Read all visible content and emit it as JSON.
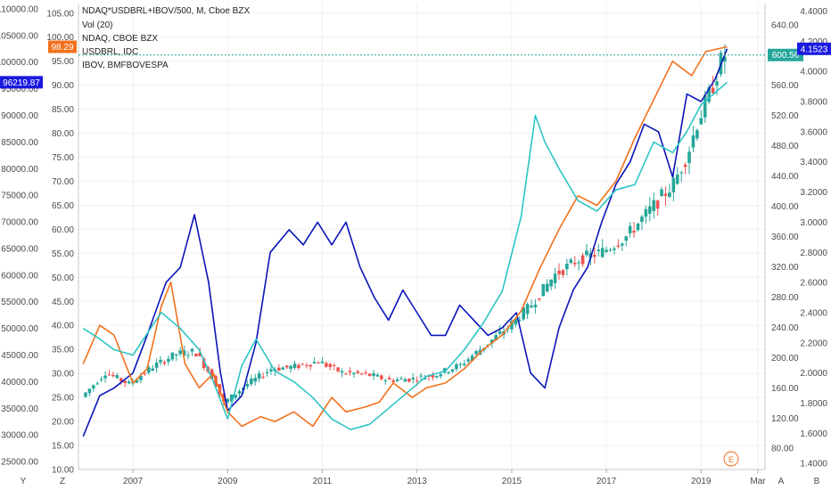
{
  "chart_data": {
    "type": "line",
    "legend": {
      "placement": "top-left",
      "entries": [
        "NDAQ*USDBRL+IBOV/500, M, Cboe BZX",
        "Vol (20)",
        "NDAQ, CBOE BZX",
        "USDBRL, IDC",
        "IBOV, BMFBOVESPA"
      ]
    },
    "x_ticks": [
      "2007",
      "2009",
      "2011",
      "2013",
      "2015",
      "2017",
      "2019",
      "Mar"
    ],
    "x_range": [
      2005.85,
      2020.35
    ],
    "axes": {
      "far_left": {
        "ticks": [
          "25000.00",
          "30000.00",
          "35000.00",
          "40000.00",
          "45000.00",
          "50000.00",
          "55000.00",
          "60000.00",
          "65000.00",
          "70000.00",
          "75000.00",
          "80000.00",
          "85000.00",
          "90000.00",
          "95000.00",
          "100000.00",
          "105000.00",
          "110000.00"
        ],
        "range": [
          23500,
          111000
        ]
      },
      "left": {
        "ticks": [
          "10.00",
          "15.00",
          "20.00",
          "25.00",
          "30.00",
          "35.00",
          "40.00",
          "45.00",
          "50.00",
          "55.00",
          "60.00",
          "65.00",
          "70.00",
          "75.00",
          "80.00",
          "85.00",
          "90.00",
          "95.00",
          "100.00",
          "105.00"
        ],
        "range": [
          10,
          107
        ]
      },
      "right": {
        "ticks": [
          "80.00",
          "120.00",
          "160.00",
          "200.00",
          "240.00",
          "280.00",
          "320.00",
          "360.00",
          "400.00",
          "440.00",
          "480.00",
          "520.00",
          "560.00",
          "600.00",
          "640.00"
        ],
        "range": [
          52,
          668
        ]
      },
      "far_right": {
        "ticks": [
          "1.4000",
          "1.6000",
          "1.8000",
          "2.0000",
          "2.2000",
          "2.4000",
          "2.6000",
          "2.8000",
          "3.0000",
          "3.2000",
          "3.4000",
          "3.6000",
          "3.8000",
          "4.0000",
          "4.2000",
          "4.4000"
        ],
        "range": [
          1.36,
          4.45
        ]
      }
    },
    "price_tags": {
      "ibov_last": "96219.87",
      "ndaq_last": "98.29",
      "main_last": "600.56",
      "usdbrl_last": "4.1523"
    },
    "series": [
      {
        "name": "NDAQ*USDBRL+IBOV/500, M, Cboe BZX",
        "kind": "candles",
        "axis": "right",
        "x": [
          2006.0,
          2006.5,
          2007.0,
          2007.5,
          2008.0,
          2008.4,
          2008.8,
          2009.0,
          2009.5,
          2010.0,
          2010.5,
          2011.0,
          2011.5,
          2012.0,
          2012.5,
          2013.0,
          2013.5,
          2014.0,
          2014.5,
          2015.0,
          2015.5,
          2016.0,
          2016.5,
          2017.0,
          2017.5,
          2018.0,
          2018.5,
          2018.8,
          2019.0,
          2019.3,
          2019.55
        ],
        "values": [
          148,
          180,
          165,
          188,
          205,
          208,
          170,
          140,
          165,
          185,
          188,
          195,
          180,
          178,
          170,
          172,
          178,
          190,
          215,
          240,
          270,
          310,
          330,
          340,
          360,
          395,
          430,
          470,
          510,
          555,
          600
        ]
      },
      {
        "name": "USDBRL, IDC",
        "color": "#0a14b8",
        "axis": "far_right",
        "x": [
          2005.95,
          2006.3,
          2006.6,
          2007.0,
          2007.3,
          2007.7,
          2008.0,
          2008.3,
          2008.6,
          2008.85,
          2009.0,
          2009.3,
          2009.6,
          2009.9,
          2010.3,
          2010.6,
          2010.9,
          2011.2,
          2011.5,
          2011.8,
          2012.1,
          2012.4,
          2012.7,
          2013.0,
          2013.3,
          2013.6,
          2013.9,
          2014.2,
          2014.5,
          2014.8,
          2015.1,
          2015.4,
          2015.7,
          2016.0,
          2016.3,
          2016.6,
          2016.9,
          2017.2,
          2017.5,
          2017.8,
          2018.1,
          2018.4,
          2018.7,
          2019.0,
          2019.3,
          2019.55
        ],
        "values": [
          1.58,
          1.85,
          1.9,
          2.0,
          2.25,
          2.6,
          2.7,
          3.05,
          2.6,
          2.0,
          1.75,
          1.85,
          2.2,
          2.8,
          2.95,
          2.85,
          3.0,
          2.85,
          3.0,
          2.7,
          2.5,
          2.35,
          2.55,
          2.4,
          2.25,
          2.25,
          2.45,
          2.35,
          2.25,
          2.3,
          2.4,
          2.0,
          1.9,
          2.3,
          2.55,
          2.7,
          3.0,
          3.25,
          3.4,
          3.65,
          3.6,
          3.3,
          3.85,
          3.8,
          3.95,
          4.15
        ]
      },
      {
        "name": "NDAQ, CBOE BZX",
        "color": "#f2711c",
        "axis": "left",
        "x": [
          2005.95,
          2006.3,
          2006.6,
          2007.0,
          2007.3,
          2007.6,
          2007.8,
          2008.1,
          2008.4,
          2008.7,
          2009.0,
          2009.3,
          2009.7,
          2010.0,
          2010.4,
          2010.8,
          2011.2,
          2011.5,
          2011.9,
          2012.2,
          2012.5,
          2012.9,
          2013.2,
          2013.6,
          2014.0,
          2014.4,
          2014.8,
          2015.2,
          2015.6,
          2016.0,
          2016.4,
          2016.8,
          2017.2,
          2017.6,
          2018.0,
          2018.4,
          2018.8,
          2019.1,
          2019.55
        ],
        "values": [
          32,
          40,
          38,
          28,
          31,
          44,
          49,
          32,
          27,
          30,
          22,
          19,
          21,
          20,
          22,
          19,
          25,
          22,
          23,
          24,
          28,
          25,
          27,
          28,
          31,
          35,
          38,
          43,
          52,
          60,
          67,
          65,
          70,
          79,
          87,
          95,
          92,
          97,
          98
        ]
      },
      {
        "name": "IBOV, BMFBOVESPA",
        "color": "#2ec4c4",
        "axis": "far_left",
        "x": [
          2005.95,
          2006.3,
          2006.6,
          2007.0,
          2007.3,
          2007.6,
          2008.0,
          2008.4,
          2008.7,
          2009.0,
          2009.3,
          2009.6,
          2010.0,
          2010.4,
          2010.8,
          2011.2,
          2011.6,
          2012.0,
          2012.4,
          2012.8,
          2013.2,
          2013.6,
          2014.0,
          2014.4,
          2014.8,
          2015.2,
          2015.5,
          2015.7,
          2016.0,
          2016.4,
          2016.8,
          2017.2,
          2017.6,
          2018.0,
          2018.4,
          2018.7,
          2019.0,
          2019.55
        ],
        "values": [
          50000,
          48000,
          46000,
          45000,
          49000,
          53000,
          50000,
          46000,
          40000,
          33000,
          43000,
          48000,
          42000,
          40000,
          37000,
          33000,
          31000,
          32000,
          35000,
          38000,
          41000,
          42000,
          46000,
          51000,
          57000,
          71000,
          90000,
          85000,
          80000,
          74000,
          72000,
          76000,
          77000,
          85000,
          83000,
          87000,
          92000,
          96219.87
        ]
      }
    ]
  }
}
